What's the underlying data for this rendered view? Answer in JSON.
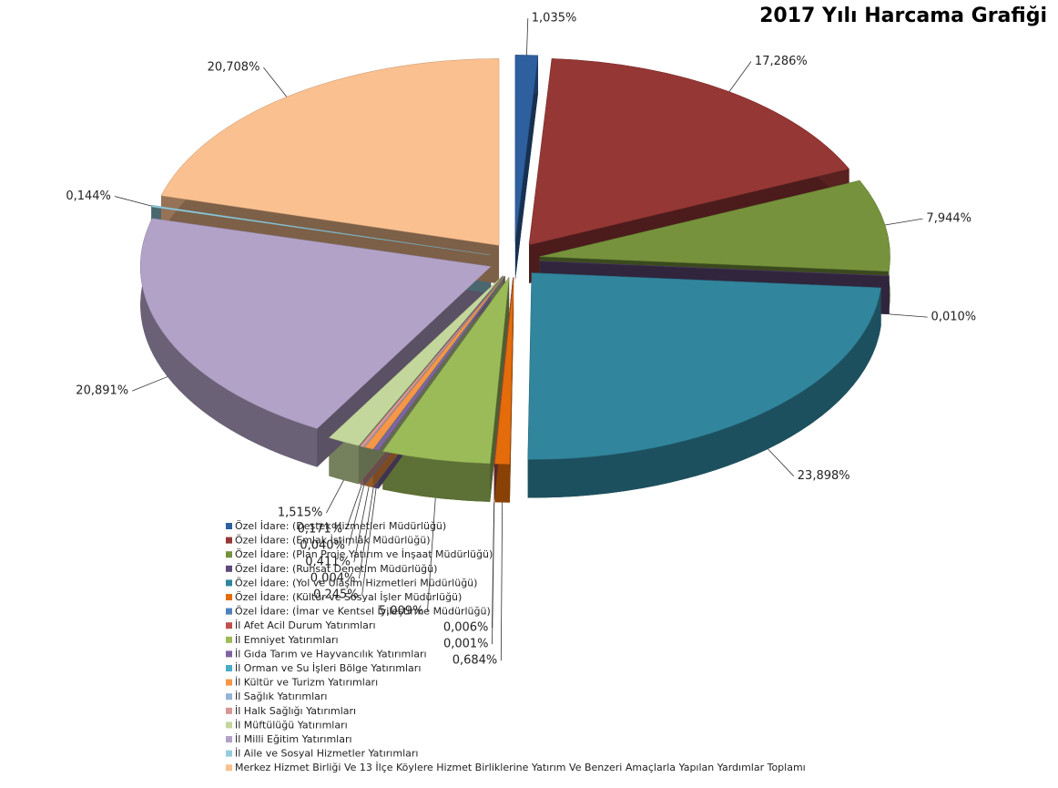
{
  "chart_data": {
    "type": "pie",
    "title": "2017 Yılı Harcama Grafiği",
    "categories": [
      "Özel İdare: (Destek Hizmetleri Müdürlüğü)",
      "Özel İdare: (Emlak İstimlâk Müdürlüğü)",
      "Özel İdare: (Plan Proje Yatırım ve İnşaat Müdürlüğü)",
      "Özel İdare: (Ruhsat Denetim Müdürlüğü)",
      "Özel İdare: (Yol ve Ulaşım Hizmetleri Müdürlüğü)",
      "Özel İdare: (Kültür ve Sosyal İşler Müdürlüğü)",
      "Özel İdare: (İmar ve Kentsel İyileştirme Müdürlüğü)",
      "İl Afet Acil Durum Yatırımları",
      "İl Emniyet Yatırımları",
      "İl Gıda Tarım ve Hayvancılık Yatırımları",
      "İl Orman ve Su İşleri Bölge Yatırımları",
      "İl Kültür ve Turizm  Yatırımları",
      "İl Sağlık Yatırımları",
      "İl Halk Sağlığı Yatırımları",
      "İl Müftülüğü Yatırımları",
      "İl Milli Eğitim Yatırımları",
      "İl Aile ve Sosyal Hizmetler  Yatırımları",
      "Merkez Hizmet Birliği Ve 13 İlçe Köylere Hizmet Birliklerine Yatırım Ve Benzeri Amaçlarla Yapılan Yardımlar Toplamı"
    ],
    "values": [
      1.035,
      17.286,
      7.944,
      0.01,
      23.898,
      0.684,
      0.001,
      0.006,
      5.009,
      0.245,
      0.004,
      0.411,
      0.04,
      0.171,
      1.515,
      20.891,
      0.144,
      20.708
    ],
    "value_labels": [
      "1,035%",
      "17,286%",
      "7,944%",
      "0,010%",
      "23,898%",
      "0,684%",
      "0,001%",
      "0,006%",
      "5,009%",
      "0,245%",
      "0,004%",
      "0,411%",
      "0,040%",
      "0,171%",
      "1,515%",
      "20,891%",
      "0,144%",
      "20,708%"
    ],
    "colors": [
      "#2e5f9e",
      "#953735",
      "#76923c",
      "#5f497a",
      "#31859c",
      "#e46c0a",
      "#4f81bd",
      "#c0504d",
      "#9bbb59",
      "#8064a2",
      "#4bacc6",
      "#f79646",
      "#95b3d7",
      "#d99694",
      "#c3d69b",
      "#b3a2c7",
      "#93cddd",
      "#fac090"
    ]
  }
}
